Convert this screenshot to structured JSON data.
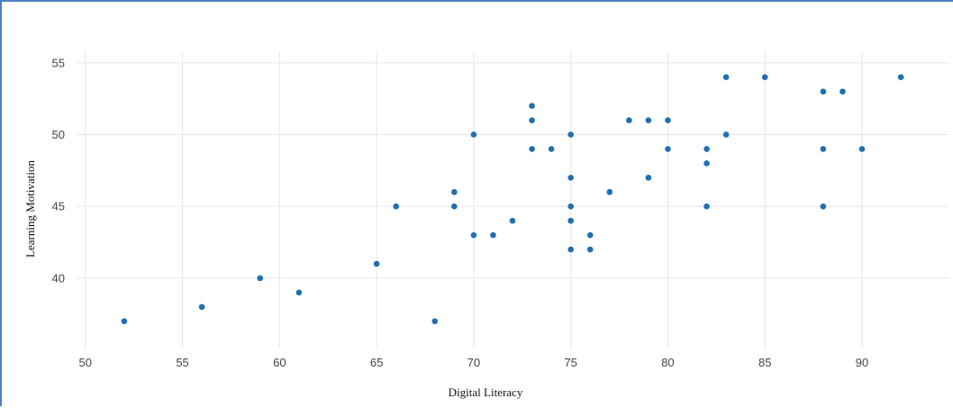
{
  "chart_data": {
    "type": "scatter",
    "title": "",
    "xlabel": "Digital Literacy",
    "ylabel": "Learning Motivation",
    "xlim": [
      49.5,
      94.5
    ],
    "ylim": [
      35.1,
      55.8
    ],
    "x_ticks": [
      50,
      55,
      60,
      65,
      70,
      75,
      80,
      85,
      90
    ],
    "y_ticks": [
      40,
      45,
      50,
      55
    ],
    "grid": true,
    "marker_color": "#1f6fb0",
    "points": [
      {
        "x": 52,
        "y": 37
      },
      {
        "x": 56,
        "y": 38
      },
      {
        "x": 59,
        "y": 40
      },
      {
        "x": 61,
        "y": 39
      },
      {
        "x": 65,
        "y": 41
      },
      {
        "x": 66,
        "y": 45
      },
      {
        "x": 68,
        "y": 37
      },
      {
        "x": 69,
        "y": 46
      },
      {
        "x": 69,
        "y": 45
      },
      {
        "x": 70,
        "y": 50
      },
      {
        "x": 70,
        "y": 43
      },
      {
        "x": 71,
        "y": 43
      },
      {
        "x": 72,
        "y": 44
      },
      {
        "x": 73,
        "y": 52
      },
      {
        "x": 73,
        "y": 51
      },
      {
        "x": 73,
        "y": 49
      },
      {
        "x": 74,
        "y": 49
      },
      {
        "x": 75,
        "y": 50
      },
      {
        "x": 75,
        "y": 47
      },
      {
        "x": 75,
        "y": 45
      },
      {
        "x": 75,
        "y": 44
      },
      {
        "x": 75,
        "y": 42
      },
      {
        "x": 76,
        "y": 43
      },
      {
        "x": 76,
        "y": 42
      },
      {
        "x": 77,
        "y": 46
      },
      {
        "x": 78,
        "y": 51
      },
      {
        "x": 79,
        "y": 51
      },
      {
        "x": 79,
        "y": 47
      },
      {
        "x": 80,
        "y": 51
      },
      {
        "x": 80,
        "y": 49
      },
      {
        "x": 82,
        "y": 49
      },
      {
        "x": 82,
        "y": 48
      },
      {
        "x": 82,
        "y": 45
      },
      {
        "x": 83,
        "y": 54
      },
      {
        "x": 83,
        "y": 50
      },
      {
        "x": 85,
        "y": 54
      },
      {
        "x": 88,
        "y": 53
      },
      {
        "x": 88,
        "y": 49
      },
      {
        "x": 88,
        "y": 45
      },
      {
        "x": 89,
        "y": 53
      },
      {
        "x": 90,
        "y": 49
      },
      {
        "x": 92,
        "y": 54
      }
    ]
  }
}
